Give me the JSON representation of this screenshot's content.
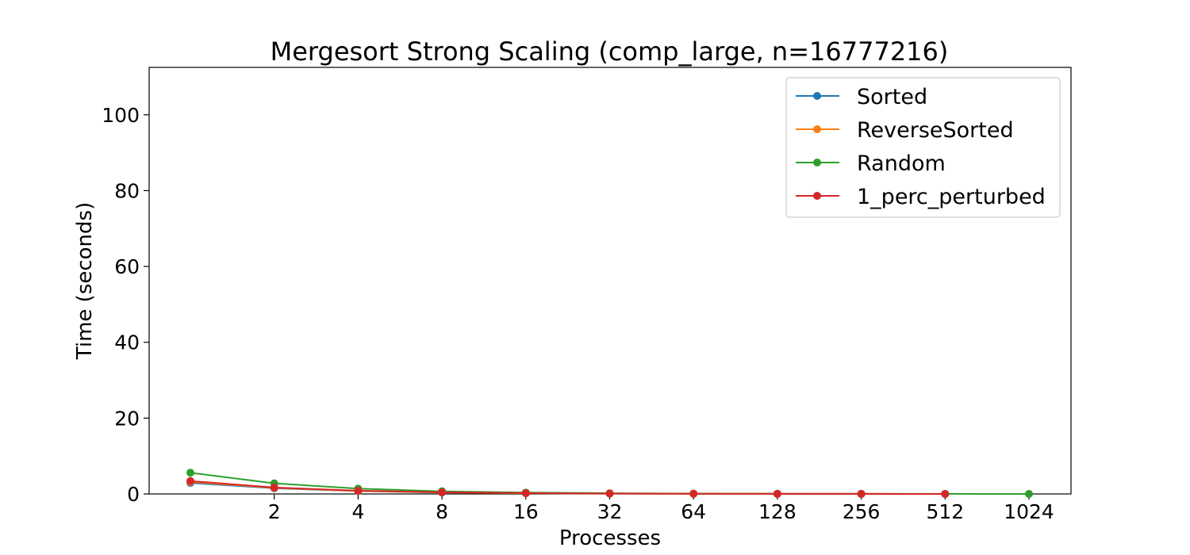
{
  "chart_data": {
    "type": "line",
    "title": "Mergesort Strong Scaling (comp_large, n=16777216)",
    "xlabel": "Processes",
    "ylabel": "Time (seconds)",
    "x_scale": "log2",
    "x": [
      1,
      2,
      4,
      8,
      16,
      32,
      64,
      128,
      256,
      512,
      1024
    ],
    "xticks": [
      2,
      4,
      8,
      16,
      32,
      64,
      128,
      256,
      512,
      1024
    ],
    "xtick_labels": [
      "2",
      "4",
      "8",
      "16",
      "32",
      "64",
      "128",
      "256",
      "512",
      "1024"
    ],
    "yticks": [
      0,
      20,
      40,
      60,
      80,
      100
    ],
    "ylim": [
      0,
      112.5
    ],
    "grid": false,
    "legend_position": "upper right",
    "series": [
      {
        "name": "Sorted",
        "color": "#1f77b4",
        "values": [
          2.9,
          1.5,
          0.75,
          0.38,
          0.2,
          0.1,
          0.05,
          0.03,
          0.02,
          0.01,
          null
        ]
      },
      {
        "name": "ReverseSorted",
        "color": "#ff7f0e",
        "values": [
          3.2,
          1.6,
          0.8,
          0.4,
          0.2,
          0.1,
          0.05,
          0.03,
          0.02,
          0.01,
          null
        ]
      },
      {
        "name": "Random",
        "color": "#2ca02c",
        "values": [
          5.6,
          2.8,
          1.4,
          0.7,
          0.35,
          0.18,
          0.09,
          0.05,
          0.03,
          0.02,
          0.01
        ]
      },
      {
        "name": "1_perc_perturbed",
        "color": "#d62728",
        "values": [
          3.4,
          1.7,
          0.85,
          0.43,
          0.22,
          0.11,
          0.06,
          0.03,
          0.02,
          0.01,
          null
        ]
      }
    ]
  }
}
